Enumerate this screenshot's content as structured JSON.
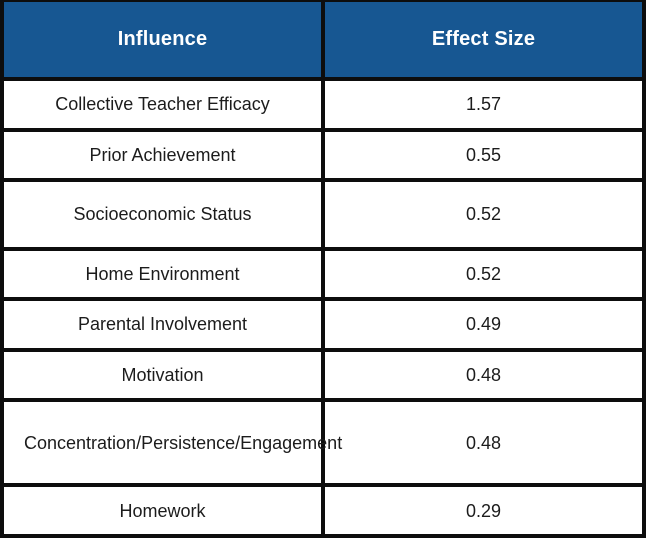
{
  "chart_data": {
    "type": "table",
    "columns": [
      "Influence",
      "Effect Size"
    ],
    "rows": [
      [
        "Collective Teacher Efficacy",
        "1.57"
      ],
      [
        "Prior Achievement",
        "0.55"
      ],
      [
        "Socioeconomic Status",
        "0.52"
      ],
      [
        "Home Environment",
        "0.52"
      ],
      [
        "Parental Involvement",
        "0.49"
      ],
      [
        "Motivation",
        "0.48"
      ],
      [
        "Concentration/Persistence/Engagement",
        "0.48"
      ],
      [
        "Homework",
        "0.29"
      ]
    ]
  },
  "colors": {
    "header_bg": "#175792",
    "header_text": "#ffffff",
    "border": "#0d0d0d",
    "row_bg": "#ffffff",
    "row_text": "#1c1c1c"
  }
}
